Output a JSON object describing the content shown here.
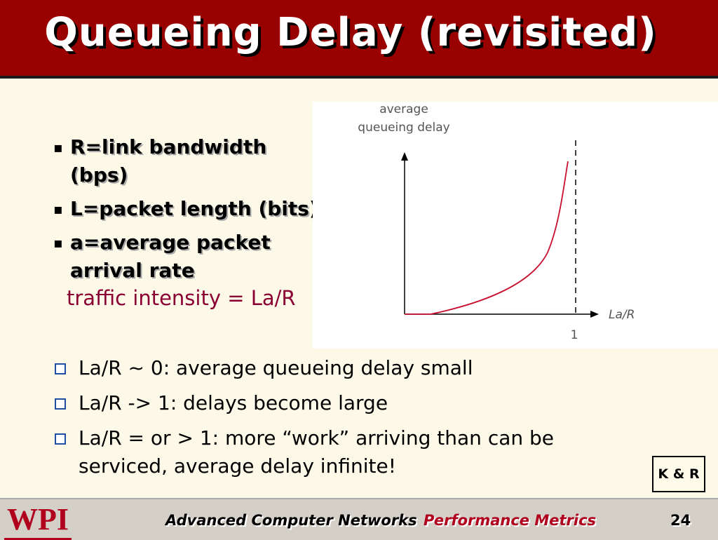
{
  "title": "Queueing Delay (revisited)",
  "definitions": [
    {
      "bullet": "▪",
      "text": "R=link bandwidth (bps)"
    },
    {
      "bullet": "▪",
      "text": "L=packet length (bits)"
    },
    {
      "bullet": "▪",
      "text": "a=average packet arrival rate"
    }
  ],
  "intensity_text": "traffic intensity = La/R",
  "graph": {
    "y_label_line1": "average",
    "y_label_line2": "queueing delay",
    "x_label": "La/R",
    "asymptote_tick": "1",
    "curve_color": "#c8102e",
    "axis_color": "#000000"
  },
  "observations": [
    "La/R ~ 0: average queueing delay small",
    "La/R -> 1: delays become large",
    "La/R = or > 1: more “work” arriving than can be serviced, average delay infinite!"
  ],
  "badge": "K & R",
  "footer": {
    "logo": "WPI",
    "course": "Advanced Computer Networks",
    "topic": "Performance Metrics",
    "page": "24"
  },
  "colors": {
    "title_bg": "#990000",
    "background": "#fdf9e8",
    "intensity": "#8b0033",
    "checkbox": "#1f4ea3"
  }
}
